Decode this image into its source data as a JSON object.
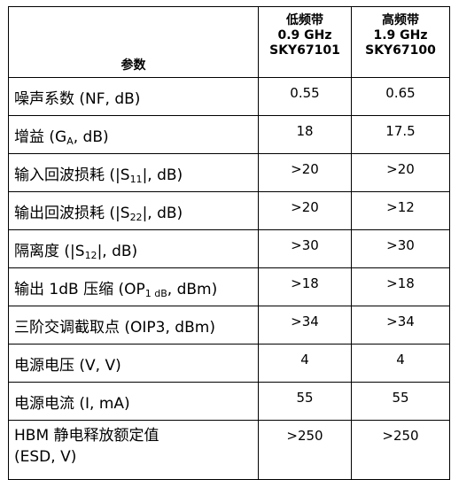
{
  "header": {
    "param_label": "参数",
    "low_band": {
      "name": "低频带",
      "freq": "0.9 GHz",
      "part": "SKY67101"
    },
    "high_band": {
      "name": "高频带",
      "freq": "1.9 GHz",
      "part": "SKY67100"
    }
  },
  "rows": [
    {
      "pre": "噪声系数 (NF, dB)",
      "sub": "",
      "post": "",
      "low": "0.55",
      "high": "0.65"
    },
    {
      "pre": "增益 (G",
      "sub": "A",
      "post": ", dB)",
      "low": "18",
      "high": "17.5"
    },
    {
      "pre": "输入回波损耗 (|S",
      "sub": "11",
      "post": "|, dB)",
      "low": ">20",
      "high": ">20"
    },
    {
      "pre": "输出回波损耗 (|S",
      "sub": "22",
      "post": "|, dB)",
      "low": ">20",
      "high": ">12"
    },
    {
      "pre": "隔离度 (|S",
      "sub": "12",
      "post": "|, dB)",
      "low": ">30",
      "high": ">30"
    },
    {
      "pre": "输出 1dB 压缩 (OP",
      "sub": "1 dB",
      "post": ", dBm)",
      "low": ">18",
      "high": ">18"
    },
    {
      "pre": "三阶交调截取点 (OIP3, dBm)",
      "sub": "",
      "post": "",
      "low": ">34",
      "high": ">34"
    },
    {
      "pre": "电源电压 (V, V)",
      "sub": "",
      "post": "",
      "low": "4",
      "high": "4"
    },
    {
      "pre": "电源电流 (I, mA)",
      "sub": "",
      "post": "",
      "low": "55",
      "high": "55"
    },
    {
      "pre": "HBM 静电释放额定值",
      "sub": "",
      "post": "(ESD, V)",
      "low": ">250",
      "high": ">250"
    }
  ]
}
